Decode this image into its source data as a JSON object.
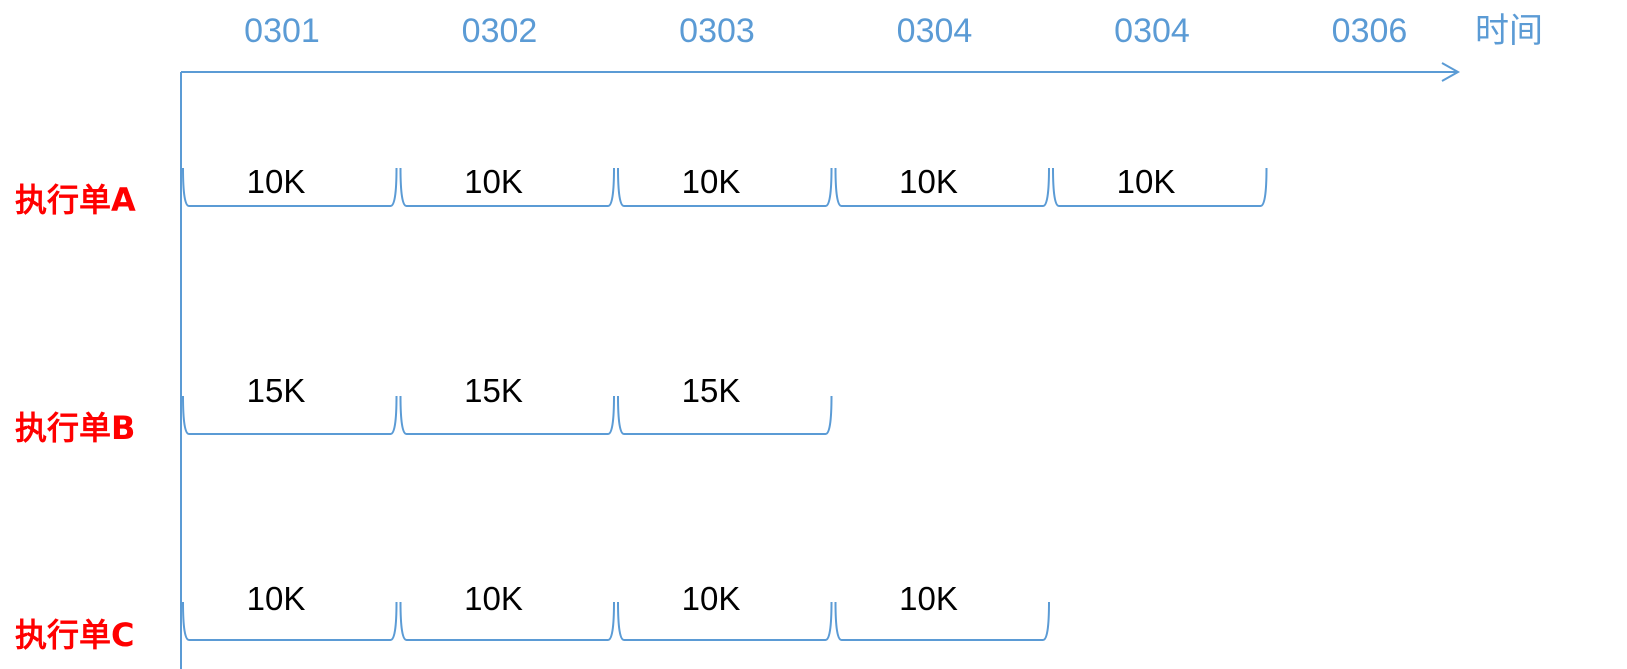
{
  "colors": {
    "axis": "#5b9bd5",
    "date_text": "#5b9bd5",
    "row_label": "#ff0000",
    "segment_text": "#000000"
  },
  "axis": {
    "dates": [
      "0301",
      "0302",
      "0303",
      "0304",
      "0304",
      "0306"
    ],
    "unit_label": "时间"
  },
  "rows": [
    {
      "label": "执行单A",
      "segments": [
        "10K",
        "10K",
        "10K",
        "10K",
        "10K"
      ]
    },
    {
      "label": "执行单B",
      "segments": [
        "15K",
        "15K",
        "15K"
      ]
    },
    {
      "label": "执行单C",
      "segments": [
        "10K",
        "10K",
        "10K",
        "10K"
      ]
    }
  ]
}
